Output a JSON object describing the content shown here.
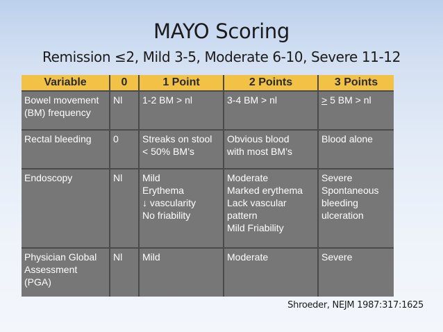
{
  "slide": {
    "title": "MAYO Scoring",
    "subtitle": "Remission ≤2, Mild 3-5, Moderate 6-10, Severe 11-12",
    "citation": "Shroeder, NEJM 1987:317:1625"
  },
  "table": {
    "headers": [
      "Variable",
      "0",
      "1 Point",
      "2 Points",
      "3 Points"
    ],
    "rows": [
      {
        "variable": [
          "Bowel movement",
          "(BM) frequency"
        ],
        "zero": "Nl",
        "one": [
          "1-2 BM > nl"
        ],
        "two": [
          "3-4 BM > nl"
        ],
        "three_sign": ">",
        "three_rest": " 5 BM > nl"
      },
      {
        "variable": [
          "Rectal bleeding"
        ],
        "zero": "0",
        "one": [
          "Streaks on stool",
          "< 50% BM’s"
        ],
        "two": [
          "Obvious blood",
          "with most BM’s"
        ],
        "three": [
          "Blood alone"
        ]
      },
      {
        "variable": [
          "Endoscopy"
        ],
        "zero": "Nl",
        "one": [
          "Mild",
          "Erythema",
          "↓ vascularity",
          "No friability"
        ],
        "two": [
          "Moderate",
          "Marked erythema",
          "Lack vascular",
          "pattern",
          "Mild Friability"
        ],
        "three": [
          "Severe",
          "Spontaneous",
          "bleeding",
          "ulceration"
        ]
      },
      {
        "variable": [
          "Physician Global",
          "Assessment",
          "(PGA)"
        ],
        "zero": "Nl",
        "one": [
          "Mild"
        ],
        "two": [
          "Moderate"
        ],
        "three": [
          "Severe"
        ]
      }
    ]
  }
}
